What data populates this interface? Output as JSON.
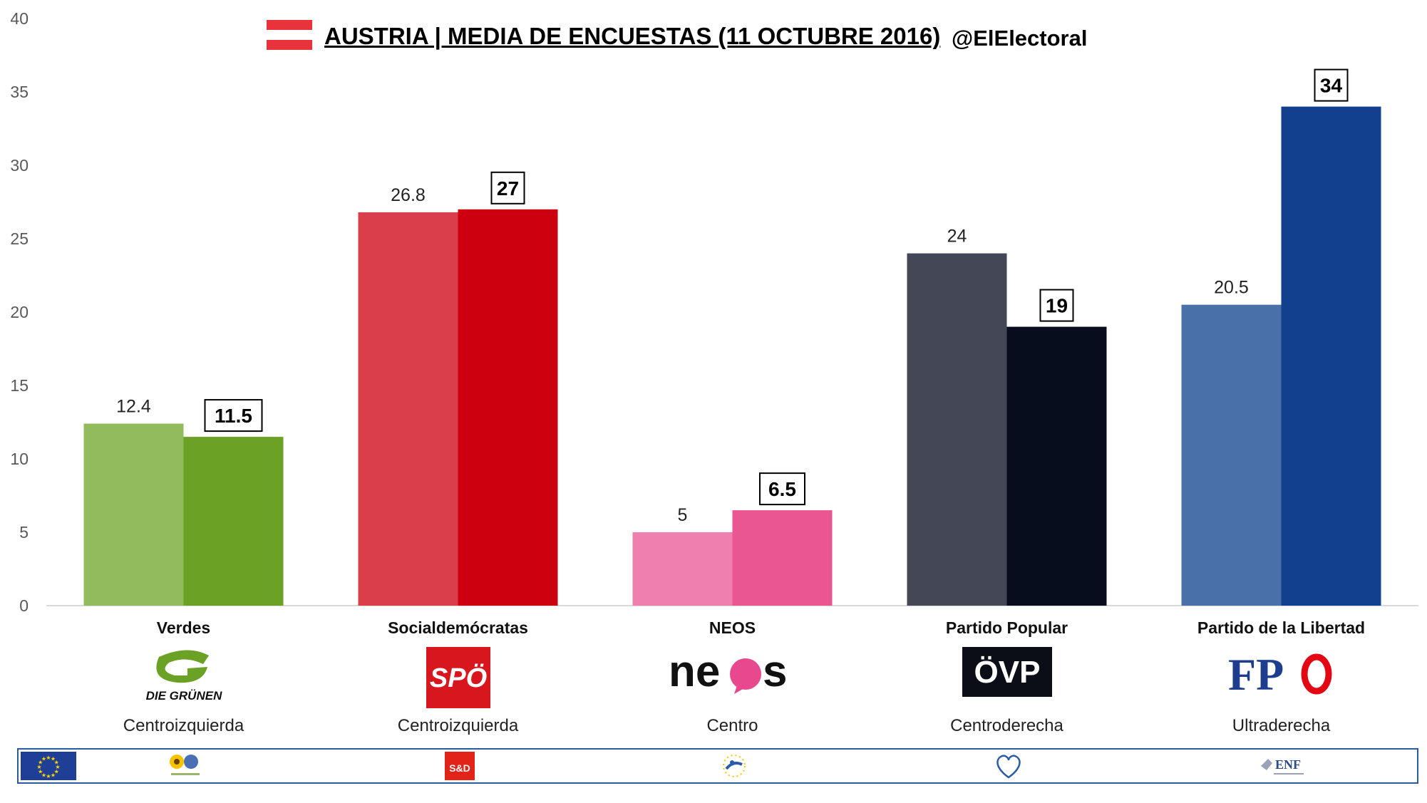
{
  "header": {
    "title": "AUSTRIA | MEDIA DE ENCUESTAS (11 OCTUBRE 2016)",
    "handle": "@ElElectoral"
  },
  "colors": {
    "flag_red": "#E8333C",
    "grid_axis": "#d9d9d9",
    "footer_border": "#2a5aa0"
  },
  "parties": [
    {
      "name": "Verdes",
      "logo_text": "DIE GRÜNEN",
      "logo_icon": "die-gruenen-logo",
      "ideology": "Centroizquierda",
      "eu_group_icon": "greens-efa-logo",
      "color_prev": "#92BC5B",
      "color_curr": "#6BA125"
    },
    {
      "name": "Socialdemócratas",
      "logo_text": "SPÖ",
      "logo_icon": "spoe-logo",
      "ideology": "Centroizquierda",
      "eu_group_icon": "s-and-d-logo",
      "eu_group_text": "S&D",
      "color_prev": "#DB3E4B",
      "color_curr": "#CC000E"
    },
    {
      "name": "NEOS",
      "logo_text": "neos",
      "logo_icon": "neos-logo",
      "ideology": "Centro",
      "eu_group_icon": "alde-logo",
      "color_prev": "#EF7FAE",
      "color_curr": "#EA5692"
    },
    {
      "name": "Partido Popular",
      "logo_text": "ÖVP",
      "logo_icon": "oevp-logo",
      "ideology": "Centroderecha",
      "eu_group_icon": "epp-logo",
      "color_prev": "#434756",
      "color_curr": "#080D1E"
    },
    {
      "name": "Partido de la Libertad",
      "logo_text": "FPÖ",
      "logo_icon": "fpoe-logo",
      "ideology": "Ultraderecha",
      "eu_group_icon": "enf-logo",
      "eu_group_text": "ENF",
      "color_prev": "#4A70AA",
      "color_curr": "#123F8E"
    }
  ],
  "footer": {
    "eu_flag_icon": "eu-flag-icon"
  },
  "chart_data": {
    "type": "bar",
    "categories": [
      "Verdes",
      "Socialdemócratas",
      "NEOS",
      "Partido Popular",
      "Partido de la Libertad"
    ],
    "series": [
      {
        "values": [
          12.4,
          26.8,
          5,
          24,
          20.5
        ]
      },
      {
        "values": [
          11.5,
          27,
          6.5,
          19,
          34
        ]
      }
    ],
    "ylim": [
      0,
      40
    ],
    "yticks": [
      0,
      5,
      10,
      15,
      20,
      25,
      30,
      35,
      40
    ],
    "grid": false,
    "data_labels": {
      "series_0": [
        "12.4",
        "26.8",
        "5",
        "24",
        "20.5"
      ],
      "series_1": [
        "11.5",
        "27",
        "6.5",
        "19",
        "34"
      ]
    }
  }
}
